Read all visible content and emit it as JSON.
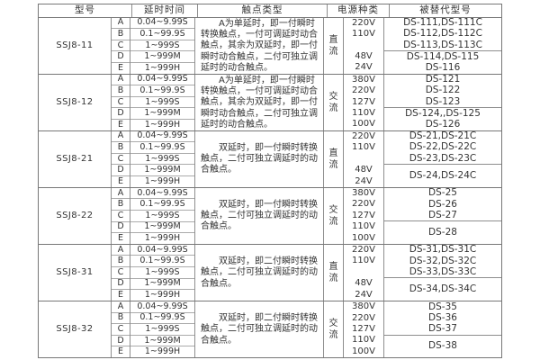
{
  "colors": {
    "background": "#ffffff",
    "text": "#333333",
    "border_dark": "#777777",
    "border_mid": "#8e8e8e",
    "border_light": "#ababab"
  },
  "table": {
    "headers": {
      "model": "型号",
      "delay_time": "延时时间",
      "contact_type": "触点类型",
      "power_kind": "电源种类",
      "replaced_models": "被替代型号"
    },
    "delay_letters": [
      "A",
      "B",
      "C",
      "D",
      "E"
    ],
    "delay_values": [
      "0.04~9.99S",
      "0.1~99.9S",
      "1~999S",
      "1~999M",
      "1~999H"
    ],
    "blocks": [
      {
        "model": "SSJ8-11",
        "contact": "A为单延时，即一付瞬时转换触点，一付可调延时动合触点，其余为双延时，即一付瞬时动合触点，二付可独立调延时的动合触点。",
        "power_type": "直流",
        "voltages": [
          "220V",
          "110V",
          "",
          "48V",
          "24V"
        ],
        "replaced_top": [
          "DS-111,DS-111C",
          "DS-112,DS-112C",
          "DS-113,DS-113C"
        ],
        "replaced_bottom": [
          "DS-114,DS-115",
          "DS-116"
        ]
      },
      {
        "model": "SSJ8-12",
        "contact": "A为单延时，即一付瞬时转换触点，一付可调延时动合触点，其余为双延时，即一付瞬时动合触点，二付可独立调延时的动合触点。",
        "power_type": "交流",
        "voltages": [
          "380V",
          "220V",
          "127V",
          "110V",
          "100V"
        ],
        "replaced_top": [
          "DS-121",
          "DS-122",
          "DS-123"
        ],
        "replaced_bottom": [
          "DS-124,,DS-125",
          "DS-126"
        ]
      },
      {
        "model": "SSJ8-21",
        "contact": "双延时，即一付瞬时转换触点，二付可独立调延时的动合触点。",
        "power_type": "直流",
        "voltages": [
          "220V",
          "110V",
          "",
          "48V",
          "24V"
        ],
        "replaced_top": [
          "DS-21,DS-21C",
          "DS-22,DS-22C",
          "DS-23,DS-23C"
        ],
        "replaced_bottom": [
          "DS-24,DS-24C"
        ]
      },
      {
        "model": "SSJ8-22",
        "contact": "双延时，即一付瞬时转换触点，二付可独立调延时的动合触点。",
        "power_type": "交流",
        "voltages": [
          "380V",
          "220V",
          "127V",
          "110V",
          "100V"
        ],
        "replaced_top": [
          "DS-25",
          "DS-26",
          "DS-27"
        ],
        "replaced_bottom": [
          "DS-28"
        ]
      },
      {
        "model": "SSJ8-31",
        "contact": "双延时，即二付瞬时转换触点，二付可独立调延时的动合触点。",
        "power_type": "直流",
        "voltages": [
          "220V",
          "110V",
          "",
          "48V",
          "24V"
        ],
        "replaced_top": [
          "DS-31,DS-31C",
          "DS-32,DS-32C",
          "DS-33,DS-33C"
        ],
        "replaced_bottom": [
          "DS-34,DS-34C"
        ]
      },
      {
        "model": "SSJ8-32",
        "contact": "双延时，即二付瞬时转换触点，二付可独立调延时的动合触点。",
        "power_type": "交流",
        "voltages": [
          "380V",
          "220V",
          "127V",
          "110V",
          "100V"
        ],
        "replaced_top": [
          "DS-35",
          "DS-36",
          "DS-37"
        ],
        "replaced_bottom": [
          "DS-38"
        ]
      }
    ]
  }
}
